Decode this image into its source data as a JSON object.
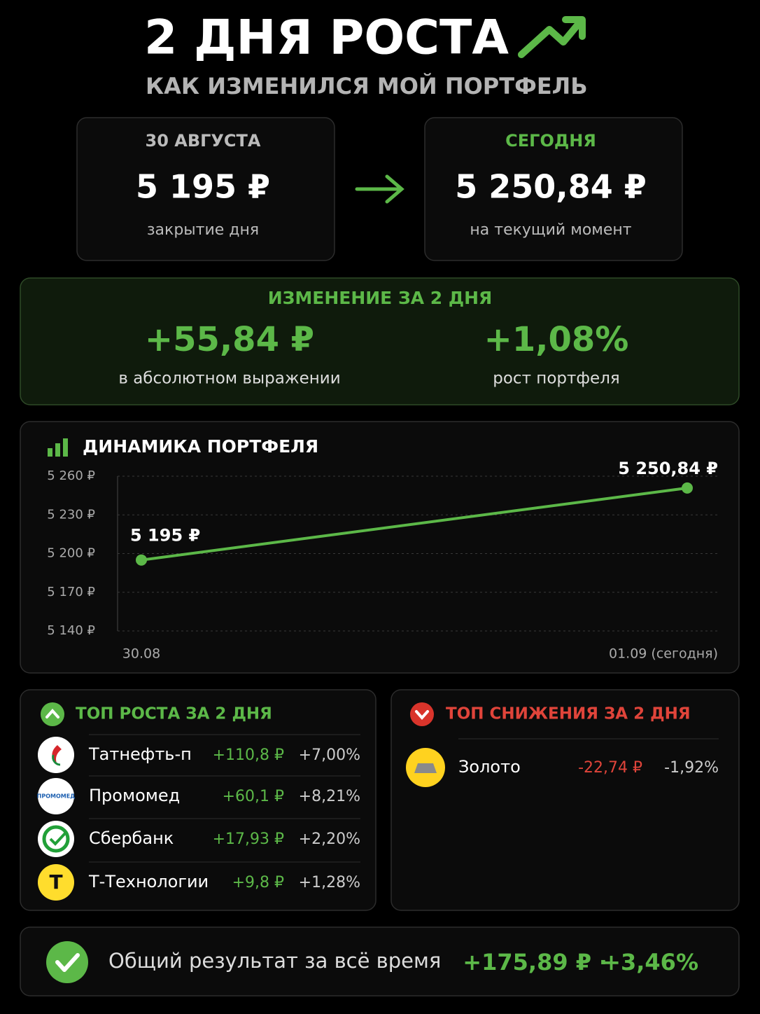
{
  "header": {
    "title": "2 ДНЯ РОСТА",
    "subtitle": "КАК ИЗМЕНИЛСЯ МОЙ ПОРТФЕЛЬ"
  },
  "cards": [
    {
      "label": "30 АВГУСТА",
      "value": "5 195 ₽",
      "note": "закрытие дня"
    },
    {
      "label": "СЕГОДНЯ",
      "value": "5 250,84 ₽",
      "note": "на текущий момент"
    }
  ],
  "change": {
    "title": "ИЗМЕНЕНИЕ ЗА 2 ДНЯ",
    "absolute": {
      "value": "+55,84 ₽",
      "note": "в абсолютном выражении"
    },
    "percent": {
      "value": "+1,08%",
      "note": "рост портфеля"
    }
  },
  "chart_data": {
    "type": "line",
    "title": "ДИНАМИКА ПОРТФЕЛЯ",
    "categories": [
      "30.08",
      "01.09 (сегодня)"
    ],
    "values": [
      5195,
      5250.84
    ],
    "value_labels": [
      "5 195 ₽",
      "5 250,84 ₽"
    ],
    "color": "#5cb848",
    "ylim": [
      5140,
      5260
    ],
    "yticks": [
      {
        "value": 5140,
        "label": "5 140 ₽"
      },
      {
        "value": 5170,
        "label": "5 170 ₽"
      },
      {
        "value": 5200,
        "label": "5 200 ₽"
      },
      {
        "value": 5230,
        "label": "5 230 ₽"
      },
      {
        "value": 5260,
        "label": "5 260 ₽"
      }
    ],
    "grid": true
  },
  "gainers": {
    "title": "ТОП РОСТА ЗА 2 ДНЯ",
    "rows": [
      {
        "name": "Татнефть-п",
        "abs": "+110,8 ₽",
        "pct": "+7,00%"
      },
      {
        "name": "Промомед",
        "abs": "+60,1 ₽",
        "pct": "+8,21%",
        "logo": "ПРОМОМЕД"
      },
      {
        "name": "Сбербанк",
        "abs": "+17,93 ₽",
        "pct": "+2,20%"
      },
      {
        "name": "Т-Технологии",
        "abs": "+9,8 ₽",
        "pct": "+1,28%",
        "logo": "Т"
      }
    ]
  },
  "losers": {
    "title": "ТОП СНИЖЕНИЯ ЗА 2 ДНЯ",
    "rows": [
      {
        "name": "Золото",
        "abs": "-22,74 ₽",
        "pct": "-1,92%"
      }
    ]
  },
  "total": {
    "label": "Общий результат за всё время",
    "abs": "+175,89 ₽",
    "separator": "·",
    "pct": "+3,46%"
  }
}
